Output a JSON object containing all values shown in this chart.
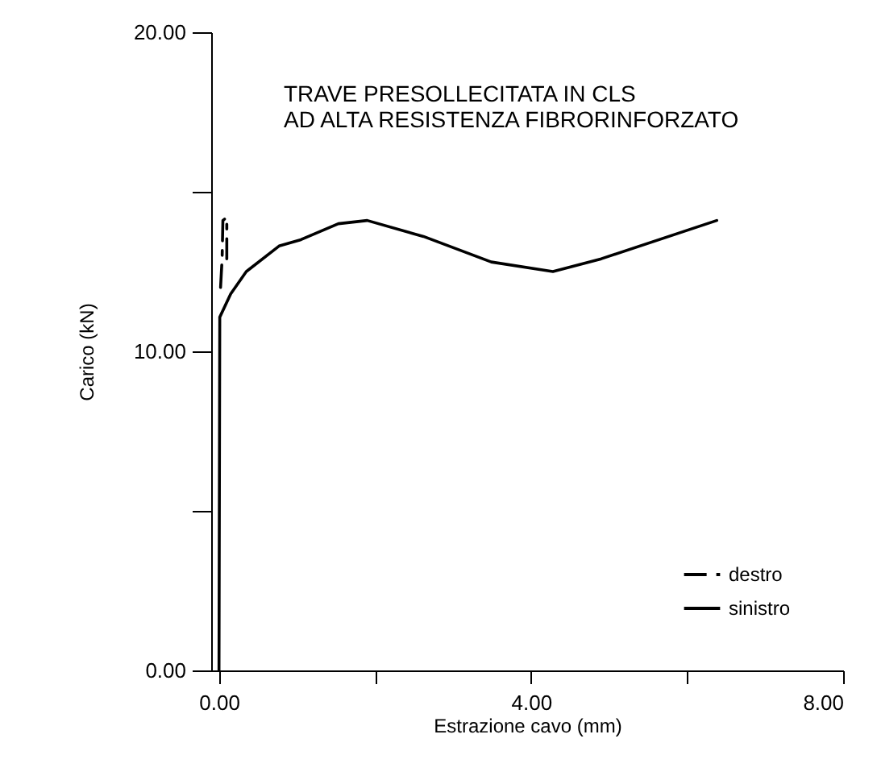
{
  "chart_data": {
    "type": "line",
    "title": "TRAVE PRESOLLECITATA IN CLS\nAD ALTA RESISTENZA FIBRORINFORZATO",
    "xlabel": "Estrazione cavo (mm)",
    "ylabel": "Carico (kN)",
    "xlim": [
      -0.1,
      8
    ],
    "ylim": [
      0,
      20
    ],
    "xticks": [
      {
        "value": 0,
        "label": "0.00"
      },
      {
        "value": 2,
        "label": null
      },
      {
        "value": 4,
        "label": "4.00"
      },
      {
        "value": 6,
        "label": null
      },
      {
        "value": 8,
        "label": "8.00"
      }
    ],
    "yticks": [
      {
        "value": 0,
        "label": "0.00"
      },
      {
        "value": 5,
        "label": null
      },
      {
        "value": 10,
        "label": "10.00"
      },
      {
        "value": 15,
        "label": null
      },
      {
        "value": 20,
        "label": "20.00"
      }
    ],
    "grid": false,
    "legend": "bottom right",
    "marker": "none",
    "series": [
      {
        "name": "destro",
        "color": "#000000",
        "line_style": "dashed",
        "x": [
          0.02,
          0.04,
          0.05,
          0.1,
          0.1
        ],
        "values": [
          12.0,
          12.9,
          14.1,
          14.2,
          12.9
        ]
      },
      {
        "name": "sinistro",
        "color": "#000000",
        "line_style": "solid",
        "x": [
          0,
          0.01,
          0.15,
          0.35,
          0.77,
          1.05,
          1.53,
          1.9,
          2.62,
          3.49,
          4.28,
          4.9,
          6.38
        ],
        "values": [
          0,
          11.07,
          11.8,
          12.5,
          13.3,
          13.5,
          14.0,
          14.1,
          13.6,
          12.8,
          12.5,
          12.9,
          14.1
        ]
      }
    ]
  }
}
